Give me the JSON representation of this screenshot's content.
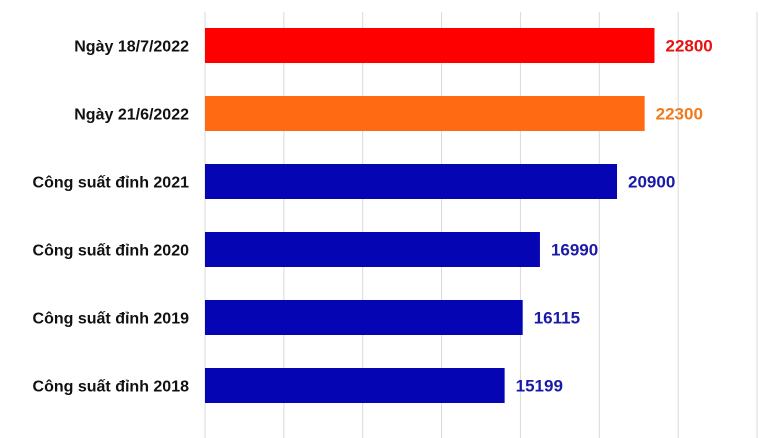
{
  "chart_data": {
    "type": "bar",
    "orientation": "horizontal",
    "categories": [
      "Ngày 18/7/2022",
      "Ngày 21/6/2022",
      "Công suất đỉnh 2021",
      "Công suất đỉnh 2020",
      "Công suất đỉnh 2019",
      "Công suất đỉnh 2018"
    ],
    "values": [
      22800,
      22300,
      20900,
      16990,
      16115,
      15199
    ],
    "value_labels": [
      "22800",
      "22300",
      "20900",
      "16990",
      "16115",
      "15199"
    ],
    "bar_colors": [
      "#ff0000",
      "#ff6a13",
      "#0505b4",
      "#0505b4",
      "#0505b4",
      "#0505b4"
    ],
    "label_colors": [
      "#e8120f",
      "#f07a1e",
      "#1a1aa8",
      "#1a1aa8",
      "#1a1aa8",
      "#1a1aa8"
    ],
    "title": "",
    "xlabel": "",
    "ylabel": "",
    "xlim": [
      0,
      28000
    ],
    "grid": true,
    "legend": "none"
  }
}
